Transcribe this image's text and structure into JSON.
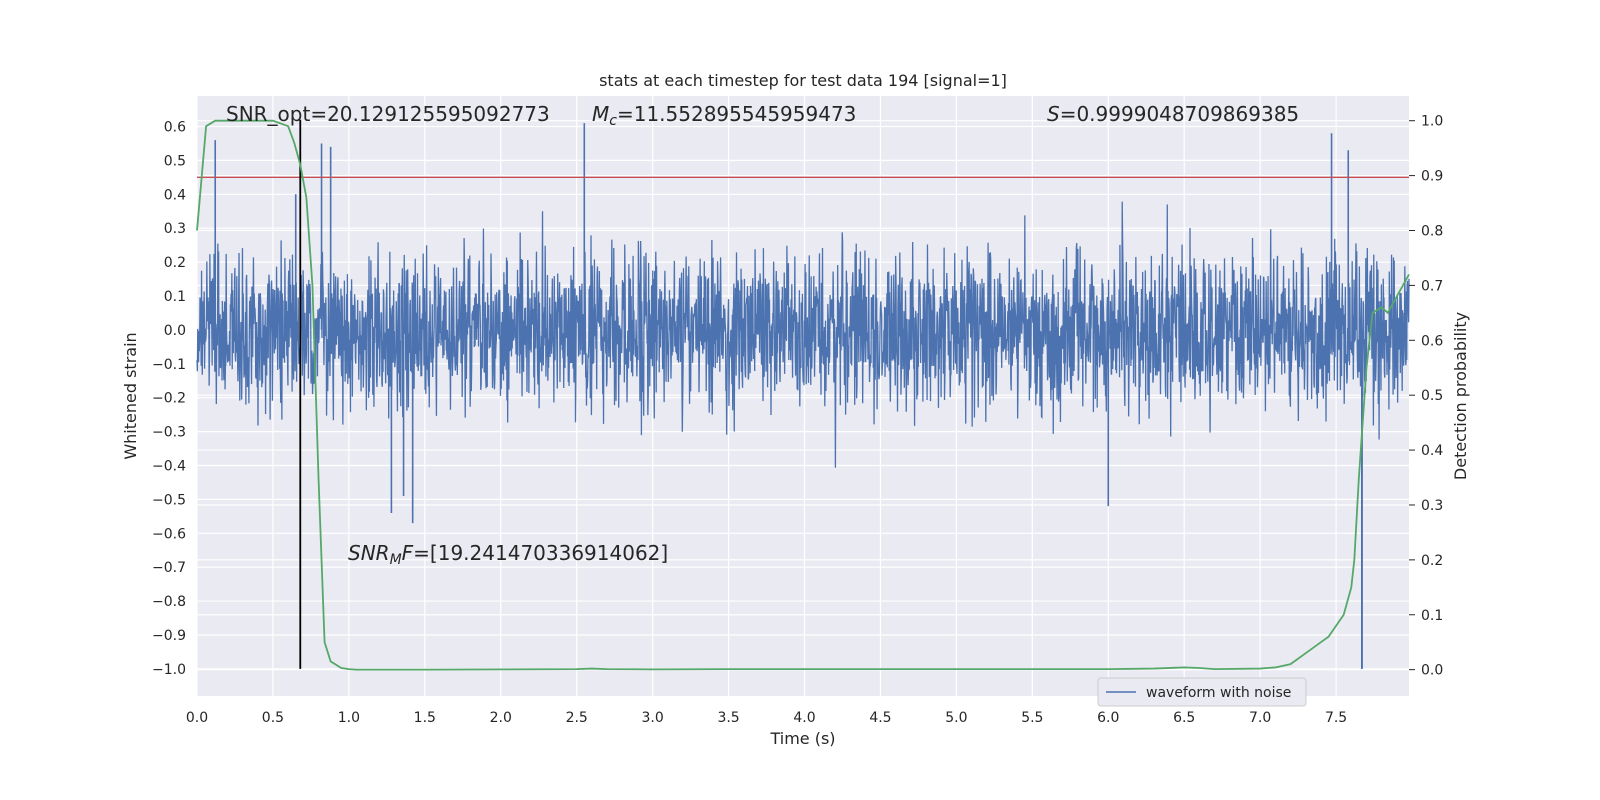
{
  "chart_data": {
    "type": "line",
    "title": "stats at each timestep for test data 194 [signal=1]",
    "xlabel": "Time (s)",
    "ylabel": "Whitened strain",
    "y2label": "Detection probability",
    "xlim": [
      0.0,
      7.98
    ],
    "ylim": [
      -1.08,
      0.69
    ],
    "y2lim": [
      -0.048,
      1.045
    ],
    "x_ticks": [
      "0.0",
      "0.5",
      "1.0",
      "1.5",
      "2.0",
      "2.5",
      "3.0",
      "3.5",
      "4.0",
      "4.5",
      "5.0",
      "5.5",
      "6.0",
      "6.5",
      "7.0",
      "7.5"
    ],
    "x_tick_values": [
      0.0,
      0.5,
      1.0,
      1.5,
      2.0,
      2.5,
      3.0,
      3.5,
      4.0,
      4.5,
      5.0,
      5.5,
      6.0,
      6.5,
      7.0,
      7.5
    ],
    "y_ticks": [
      "0.6",
      "0.5",
      "0.4",
      "0.3",
      "0.2",
      "0.1",
      "0.0",
      "−0.1",
      "−0.2",
      "−0.3",
      "−0.4",
      "−0.5",
      "−0.6",
      "−0.7",
      "−0.8",
      "−0.9",
      "−1.0"
    ],
    "y_tick_values": [
      0.6,
      0.5,
      0.4,
      0.3,
      0.2,
      0.1,
      0.0,
      -0.1,
      -0.2,
      -0.3,
      -0.4,
      -0.5,
      -0.6,
      -0.7,
      -0.8,
      -0.9,
      -1.0
    ],
    "y2_ticks": [
      "1.0",
      "0.9",
      "0.8",
      "0.7",
      "0.6",
      "0.5",
      "0.4",
      "0.3",
      "0.2",
      "0.1",
      "0.0"
    ],
    "y2_tick_values": [
      1.0,
      0.9,
      0.8,
      0.7,
      0.6,
      0.5,
      0.4,
      0.3,
      0.2,
      0.1,
      0.0
    ],
    "grid": true,
    "legend_position": "bottom-right",
    "series": [
      {
        "name": "waveform with noise",
        "color": "#4c72b0",
        "description_values": "dense noisy strain oscillating roughly between -0.35 and 0.30 with occasional spikes",
        "peaks": [
          {
            "x": 0.12,
            "y": 0.56
          },
          {
            "x": 0.65,
            "y": 0.4
          },
          {
            "x": 0.82,
            "y": 0.55
          },
          {
            "x": 0.88,
            "y": 0.54
          },
          {
            "x": 2.55,
            "y": 0.61
          },
          {
            "x": 7.47,
            "y": 0.58
          },
          {
            "x": 7.58,
            "y": 0.53
          },
          {
            "x": 1.42,
            "y": -0.57
          },
          {
            "x": 1.28,
            "y": -0.54
          },
          {
            "x": 1.36,
            "y": -0.49
          },
          {
            "x": 6.0,
            "y": -0.52
          },
          {
            "x": 7.67,
            "y": -1.0
          }
        ]
      },
      {
        "name": "",
        "color": "#55a868",
        "axis": "right",
        "x": [
          0.0,
          0.06,
          0.12,
          0.2,
          0.3,
          0.4,
          0.5,
          0.6,
          0.64,
          0.68,
          0.72,
          0.76,
          0.8,
          0.84,
          0.88,
          0.95,
          1.0,
          1.05,
          1.2,
          1.5,
          2.0,
          2.5,
          2.6,
          2.7,
          3.0,
          3.5,
          3.9,
          4.5,
          5.0,
          5.3,
          5.5,
          6.0,
          6.3,
          6.5,
          6.6,
          6.7,
          7.0,
          7.1,
          7.2,
          7.3,
          7.35,
          7.4,
          7.45,
          7.5,
          7.55,
          7.6,
          7.62,
          7.65,
          7.7,
          7.74,
          7.8,
          7.84,
          7.9,
          7.98
        ],
        "values": [
          0.8,
          0.99,
          1.0,
          1.0,
          1.0,
          1.0,
          1.0,
          0.99,
          0.96,
          0.92,
          0.86,
          0.7,
          0.35,
          0.05,
          0.015,
          0.003,
          0.001,
          0.0,
          0.0,
          0.0,
          0.0005,
          0.001,
          0.002,
          0.001,
          0.0005,
          0.001,
          0.001,
          0.001,
          0.001,
          0.001,
          0.001,
          0.001,
          0.002,
          0.004,
          0.003,
          0.001,
          0.002,
          0.004,
          0.01,
          0.03,
          0.04,
          0.05,
          0.06,
          0.08,
          0.1,
          0.15,
          0.2,
          0.35,
          0.55,
          0.65,
          0.66,
          0.65,
          0.68,
          0.72
        ]
      }
    ],
    "hlines": [
      {
        "axis": "left",
        "y": 0.45,
        "color": "#c44e52"
      }
    ],
    "vlines": [
      {
        "x": 0.68,
        "y_from": -1.0,
        "y_to": 0.62,
        "color": "#000000"
      },
      {
        "x": 7.67,
        "y_from": -1.0,
        "y_to": 0.0,
        "color": "#4c72b0"
      }
    ],
    "annotations": {
      "snr_opt": "SNR_opt=20.129125595092773",
      "mc": "=11.552895545959473",
      "mc_symbol": "M",
      "mc_sub": "c",
      "s": "=0.9999048709869385",
      "s_symbol": "S",
      "snr_mf_prefix": "SNR",
      "snr_mf_sub": "M",
      "snr_mf_suffix": "F",
      "snr_mf_value": "=[19.241470336914062]"
    },
    "legend_label": "waveform with noise",
    "colors": {
      "axes_bg": "#eaeaf2",
      "grid": "#ffffff",
      "waveform": "#4c72b0",
      "probability": "#55a868",
      "threshold": "#c44e52",
      "marker": "#000000"
    }
  }
}
